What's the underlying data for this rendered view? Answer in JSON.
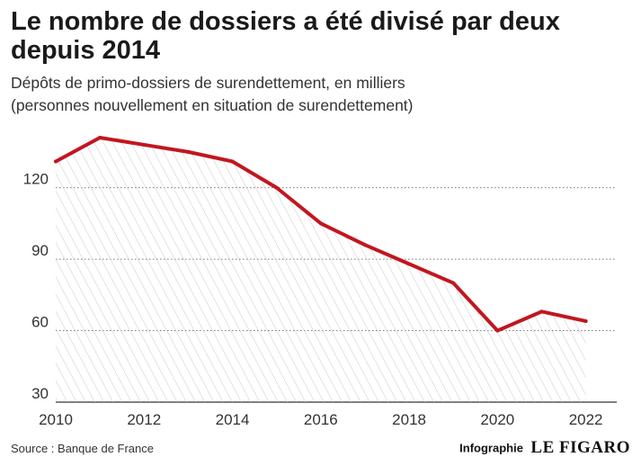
{
  "chart_data": {
    "type": "area",
    "title": "Le nombre de dossiers a été divisé par deux depuis 2014",
    "subtitle": [
      "Dépôts de primo-dossiers de surendettement, en milliers",
      "(personnes nouvellement en situation de surendettement)"
    ],
    "xlabel": "",
    "ylabel": "",
    "x": [
      2010,
      2011,
      2012,
      2013,
      2014,
      2015,
      2016,
      2017,
      2018,
      2019,
      2020,
      2021,
      2022
    ],
    "series": [
      {
        "values": [
          131,
          141,
          138,
          135,
          131,
          120,
          105,
          96,
          88,
          80,
          60,
          68,
          64
        ]
      }
    ],
    "xlim": [
      2010,
      2022.7
    ],
    "ylim": [
      30,
      141
    ],
    "yticks": [
      30,
      60,
      90,
      120
    ],
    "xticks": [
      2010,
      2012,
      2014,
      2016,
      2018,
      2020,
      2022
    ],
    "grid": true,
    "line_color": "#c2161f",
    "fill": "hatched"
  },
  "footer": {
    "source": "Source : Banque de France",
    "infographie": "Infographie",
    "brand": "LE FIGARO"
  }
}
